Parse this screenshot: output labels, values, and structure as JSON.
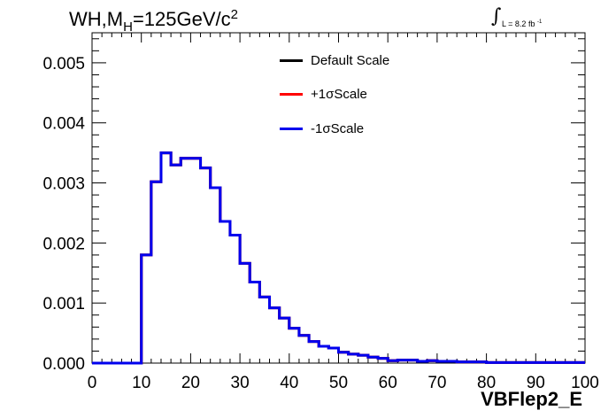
{
  "title": {
    "main": "WH,M",
    "sub": "H",
    "value": "=125GeV/c",
    "sup": "2"
  },
  "lumi": {
    "symbol": "∫",
    "text": "L = 8.2 fb",
    "sup": "-1"
  },
  "chart_data": {
    "type": "line",
    "style": "step-histogram",
    "xlabel": "VBFlep2_E",
    "ylabel": "",
    "xlim": [
      0,
      100
    ],
    "ylim": [
      0,
      0.0055
    ],
    "bin_width": 2,
    "x_ticks": [
      "0",
      "10",
      "20",
      "30",
      "40",
      "50",
      "60",
      "70",
      "80",
      "90",
      "100"
    ],
    "x_tick_values": [
      0,
      10,
      20,
      30,
      40,
      50,
      60,
      70,
      80,
      90,
      100
    ],
    "y_ticks": [
      "0.000",
      "0.001",
      "0.002",
      "0.003",
      "0.004",
      "0.005"
    ],
    "y_tick_values": [
      0,
      0.001,
      0.002,
      0.003,
      0.004,
      0.005
    ],
    "legend_position": "top-center",
    "series": [
      {
        "name": "Default Scale",
        "color": "#000000",
        "values": [
          0,
          0,
          0,
          0,
          0,
          0.0018,
          0.00302,
          0.0035,
          0.0033,
          0.00341,
          0.00341,
          0.00325,
          0.00292,
          0.00236,
          0.00213,
          0.00166,
          0.00135,
          0.0011,
          0.00092,
          0.00075,
          0.00058,
          0.00046,
          0.00036,
          0.00028,
          0.00025,
          0.00018,
          0.00015,
          0.00013,
          0.0001,
          8e-05,
          4e-05,
          5e-05,
          5e-05,
          3e-05,
          4e-05,
          3e-05,
          3e-05,
          2e-05,
          2e-05,
          2e-05,
          1e-05,
          1e-05,
          1e-05,
          1e-05,
          1e-05,
          1e-05,
          1e-05,
          1e-05,
          1e-05,
          1e-05
        ]
      },
      {
        "name": "+1σScale",
        "color": "#ff0000",
        "values": [
          0,
          0,
          0,
          0,
          0,
          0.0018,
          0.00302,
          0.0035,
          0.0033,
          0.00341,
          0.00341,
          0.00325,
          0.00292,
          0.00236,
          0.00213,
          0.00166,
          0.00135,
          0.0011,
          0.00092,
          0.00075,
          0.00058,
          0.00046,
          0.00036,
          0.00028,
          0.00025,
          0.00018,
          0.00015,
          0.00013,
          0.0001,
          8e-05,
          4e-05,
          5e-05,
          5e-05,
          3e-05,
          4e-05,
          3e-05,
          3e-05,
          2e-05,
          2e-05,
          2e-05,
          1e-05,
          1e-05,
          1e-05,
          1e-05,
          1e-05,
          1e-05,
          1e-05,
          1e-05,
          1e-05,
          1e-05
        ]
      },
      {
        "name": "-1σScale",
        "color": "#0000ee",
        "values": [
          0,
          0,
          0,
          0,
          0,
          0.0018,
          0.00302,
          0.0035,
          0.0033,
          0.00341,
          0.00341,
          0.00325,
          0.00292,
          0.00236,
          0.00213,
          0.00166,
          0.00135,
          0.0011,
          0.00092,
          0.00075,
          0.00058,
          0.00046,
          0.00036,
          0.00028,
          0.00025,
          0.00018,
          0.00015,
          0.00013,
          0.0001,
          8e-05,
          4e-05,
          5e-05,
          5e-05,
          3e-05,
          4e-05,
          3e-05,
          3e-05,
          2e-05,
          2e-05,
          2e-05,
          1e-05,
          1e-05,
          1e-05,
          1e-05,
          1e-05,
          1e-05,
          1e-05,
          1e-05,
          1e-05,
          1e-05
        ]
      }
    ]
  }
}
